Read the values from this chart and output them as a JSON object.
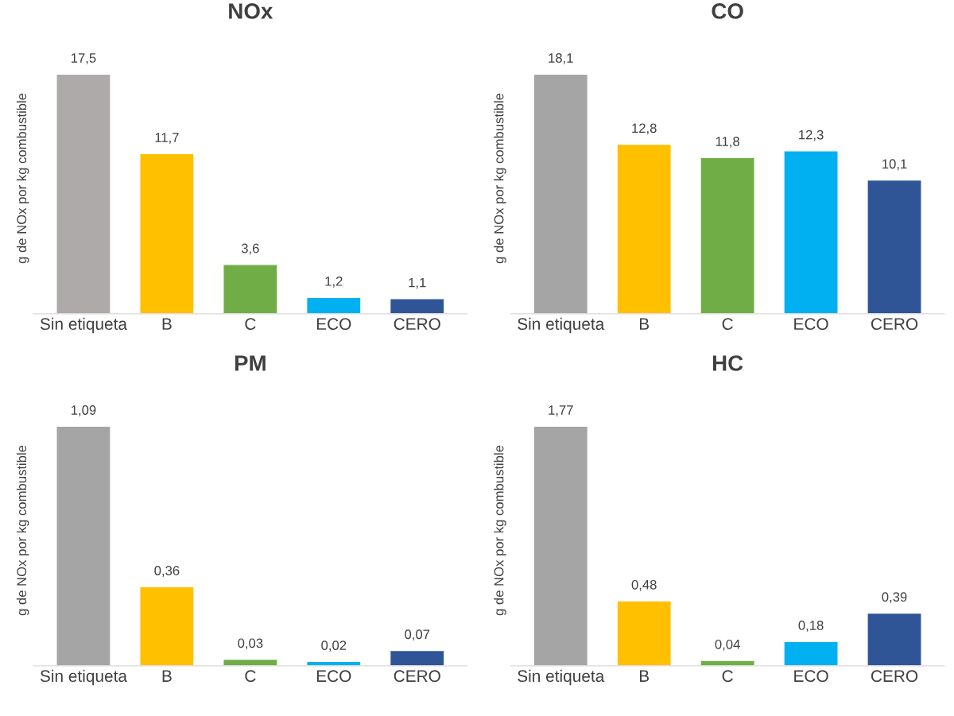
{
  "chart_data": [
    {
      "type": "bar",
      "title": "NOx",
      "ylabel": "g de NOx por kg combustible",
      "categories": [
        "Sin etiqueta",
        "B",
        "C",
        "ECO",
        "CERO"
      ],
      "values": [
        17.5,
        11.7,
        3.6,
        1.2,
        1.1
      ],
      "colors": [
        "#aeaaaa",
        "#ffc000",
        "#70ad47",
        "#00b0f0",
        "#2f5597"
      ],
      "value_labels": [
        "17,5",
        "11,7",
        "3,6",
        "1,2",
        "1,1"
      ],
      "tick_labels": "x"
    },
    {
      "type": "bar",
      "title": "CO",
      "ylabel": "g de NOx por kg combustible",
      "categories": [
        "Sin etiqueta",
        "B",
        "C",
        "ECO",
        "CERO"
      ],
      "values": [
        18.1,
        12.8,
        11.8,
        12.3,
        10.1
      ],
      "colors": [
        "#a5a5a5",
        "#ffc000",
        "#70ad47",
        "#00b0f0",
        "#2f5597"
      ],
      "value_labels": [
        "18,1",
        "12,8",
        "11,8",
        "12,3",
        "10,1"
      ],
      "tick_labels": "x"
    },
    {
      "type": "bar",
      "title": "PM",
      "ylabel": "g de NOx por kg combustible",
      "categories": [
        "Sin etiqueta",
        "B",
        "C",
        "ECO",
        "CERO"
      ],
      "values": [
        1.09,
        0.36,
        0.03,
        0.02,
        0.07
      ],
      "colors": [
        "#a5a5a5",
        "#ffc000",
        "#70ad47",
        "#00b0f0",
        "#2f5597"
      ],
      "value_labels": [
        "1,09",
        "0,36",
        "0,03",
        "0,02",
        "0,07"
      ],
      "tick_labels": "x"
    },
    {
      "type": "bar",
      "title": "HC",
      "ylabel": "g de NOx por kg combustible",
      "categories": [
        "Sin etiqueta",
        "B",
        "C",
        "ECO",
        "CERO"
      ],
      "values": [
        1.77,
        0.48,
        0.04,
        0.18,
        0.39
      ],
      "colors": [
        "#a5a5a5",
        "#ffc000",
        "#70ad47",
        "#00b0f0",
        "#2f5597"
      ],
      "value_labels": [
        "1,77",
        "0,48",
        "0,04",
        "0,18",
        "0,39"
      ],
      "tick_labels": "x"
    }
  ]
}
